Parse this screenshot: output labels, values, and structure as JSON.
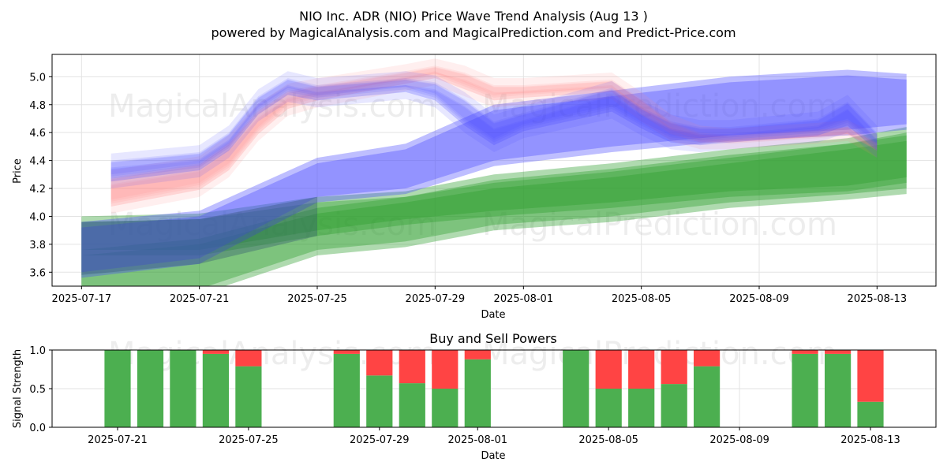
{
  "chart_data": [
    {
      "type": "area",
      "title": "NIO Inc. ADR (NIO) Price Wave Trend Analysis (Aug 13 )",
      "subtitle": "powered by MagicalAnalysis.com and MagicalPrediction.com and Predict-Price.com",
      "xlabel": "Date",
      "ylabel": "Price",
      "x_start": "2025-07-17",
      "xlim": [
        "2025-07-16",
        "2025-08-15"
      ],
      "ylim": [
        3.5,
        5.16
      ],
      "xticks": [
        "2025-07-17",
        "2025-07-21",
        "2025-07-25",
        "2025-07-29",
        "2025-08-01",
        "2025-08-05",
        "2025-08-09",
        "2025-08-13"
      ],
      "yticks": [
        3.6,
        3.8,
        4.0,
        4.2,
        4.4,
        4.6,
        4.8,
        5.0
      ],
      "grid": true,
      "colors": {
        "blue": "#4444ff",
        "red": "#ff8080",
        "green": "#2e9e2e",
        "dark": "#2f4f6f"
      },
      "series": [
        {
          "color": "blue",
          "x": [
            "2025-07-18",
            "2025-07-21",
            "2025-07-22",
            "2025-07-23",
            "2025-07-24",
            "2025-07-25",
            "2025-07-28",
            "2025-07-29",
            "2025-07-30",
            "2025-07-31",
            "2025-08-01",
            "2025-08-04",
            "2025-08-05",
            "2025-08-06",
            "2025-08-07",
            "2025-08-08",
            "2025-08-11",
            "2025-08-12",
            "2025-08-13"
          ],
          "upper": [
            4.42,
            4.48,
            4.62,
            4.88,
            5.01,
            4.96,
            5.01,
            4.98,
            4.86,
            4.7,
            4.76,
            4.94,
            4.8,
            4.7,
            4.66,
            4.66,
            4.72,
            4.84,
            4.62
          ],
          "lower": [
            4.22,
            4.3,
            4.44,
            4.7,
            4.84,
            4.8,
            4.86,
            4.8,
            4.62,
            4.48,
            4.58,
            4.72,
            4.6,
            4.5,
            4.48,
            4.5,
            4.55,
            4.62,
            4.44
          ]
        },
        {
          "color": "red",
          "x": [
            "2025-07-18",
            "2025-07-21",
            "2025-07-22",
            "2025-07-23",
            "2025-07-24",
            "2025-07-25",
            "2025-07-28",
            "2025-07-29",
            "2025-07-30",
            "2025-07-31",
            "2025-08-01",
            "2025-08-04",
            "2025-08-05",
            "2025-08-06",
            "2025-08-07",
            "2025-08-08",
            "2025-08-11",
            "2025-08-12",
            "2025-08-13"
          ],
          "upper": [
            4.3,
            4.4,
            4.55,
            4.78,
            4.92,
            4.96,
            5.06,
            5.1,
            5.05,
            4.96,
            4.96,
            5.0,
            4.86,
            4.7,
            4.62,
            4.6,
            4.64,
            4.66,
            4.56
          ],
          "lower": [
            4.04,
            4.16,
            4.3,
            4.56,
            4.74,
            4.8,
            4.92,
            4.96,
            4.88,
            4.8,
            4.82,
            4.86,
            4.7,
            4.56,
            4.5,
            4.5,
            4.54,
            4.56,
            4.44
          ]
        },
        {
          "color": "blue",
          "x": [
            "2025-07-17",
            "2025-07-21",
            "2025-07-25",
            "2025-07-28",
            "2025-07-31",
            "2025-08-04",
            "2025-08-08",
            "2025-08-12",
            "2025-08-14"
          ],
          "upper": [
            3.96,
            4.04,
            4.42,
            4.52,
            4.8,
            4.9,
            5.0,
            5.05,
            5.02
          ],
          "lower": [
            3.56,
            3.66,
            4.1,
            4.16,
            4.36,
            4.46,
            4.54,
            4.58,
            4.62
          ]
        },
        {
          "color": "green",
          "x": [
            "2025-07-17",
            "2025-07-21",
            "2025-07-25",
            "2025-07-28",
            "2025-07-31",
            "2025-08-04",
            "2025-08-08",
            "2025-08-12",
            "2025-08-14"
          ],
          "upper": [
            4.0,
            4.02,
            4.14,
            4.18,
            4.3,
            4.38,
            4.48,
            4.56,
            4.64
          ],
          "lower": [
            3.72,
            3.72,
            3.86,
            3.94,
            4.0,
            4.06,
            4.14,
            4.18,
            4.24
          ]
        },
        {
          "color": "green",
          "x": [
            "2025-07-17",
            "2025-07-21",
            "2025-07-25",
            "2025-07-28",
            "2025-07-31",
            "2025-08-04",
            "2025-08-08",
            "2025-08-12",
            "2025-08-14"
          ],
          "upper": [
            3.76,
            3.84,
            4.06,
            4.14,
            4.24,
            4.32,
            4.42,
            4.52,
            4.58
          ],
          "lower": [
            3.4,
            3.44,
            3.72,
            3.78,
            3.9,
            3.96,
            4.06,
            4.12,
            4.16
          ]
        }
      ]
    },
    {
      "type": "bar",
      "title": "Buy and Sell Powers",
      "xlabel": "Date",
      "ylabel": "Signal Strength",
      "ylim": [
        0,
        1.0
      ],
      "yticks": [
        0.0,
        0.5,
        1.0
      ],
      "xlim": [
        "2025-07-19",
        "2025-08-15"
      ],
      "xticks": [
        "2025-07-21",
        "2025-07-25",
        "2025-07-29",
        "2025-08-01",
        "2025-08-05",
        "2025-08-09",
        "2025-08-13"
      ],
      "colors": {
        "buy": "#4caf50",
        "sell": "#ff4444"
      },
      "dates": [
        "2025-07-21",
        "2025-07-22",
        "2025-07-23",
        "2025-07-24",
        "2025-07-25",
        "2025-07-28",
        "2025-07-29",
        "2025-07-30",
        "2025-07-31",
        "2025-08-01",
        "2025-08-04",
        "2025-08-05",
        "2025-08-06",
        "2025-08-07",
        "2025-08-08",
        "2025-08-11",
        "2025-08-12",
        "2025-08-13"
      ],
      "buy": [
        1.0,
        1.0,
        1.0,
        0.95,
        0.79,
        0.95,
        0.67,
        0.57,
        0.5,
        0.88,
        1.0,
        0.5,
        0.5,
        0.56,
        0.79,
        0.95,
        0.95,
        0.33
      ],
      "sell": [
        0.0,
        0.0,
        0.0,
        0.05,
        0.21,
        0.05,
        0.33,
        0.43,
        0.5,
        0.12,
        0.0,
        0.5,
        0.5,
        0.44,
        0.21,
        0.05,
        0.05,
        0.67
      ]
    }
  ],
  "watermarks": [
    "MagicalAnalysis.com",
    "MagicalPrediction.com"
  ]
}
